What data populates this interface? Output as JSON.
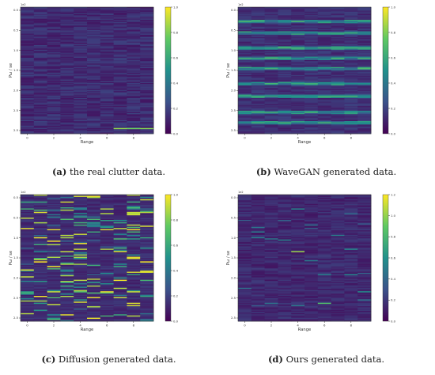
{
  "colors": {
    "colormap": [
      "#440154",
      "#3b528b",
      "#21918c",
      "#5ec962",
      "#fde725"
    ],
    "background": "#ffffff"
  },
  "chart_data": [
    {
      "type": "heatmap",
      "caption_letter": "(a)",
      "caption_text": " the real clutter data.",
      "xlabel": "Range",
      "ylabel": "Pω / se",
      "y_scale_note": "1e2",
      "x_ticks": [
        "0",
        "2",
        "4",
        "6",
        "8"
      ],
      "y_ticks": [
        "0.5",
        "0.5",
        "1.0",
        "1.5",
        "2.0",
        "2.5",
        "2.5"
      ],
      "colorbar_ticks": [
        "1.0",
        "0.8",
        "0.6",
        "0.4",
        "0.2",
        "0.0"
      ],
      "colorbar_range": [
        0,
        1
      ],
      "grid": false,
      "pattern": "real",
      "rows": 110,
      "cols": 10
    },
    {
      "type": "heatmap",
      "caption_letter": "(b)",
      "caption_text": " WaveGAN generated data.",
      "xlabel": "Range",
      "ylabel": "Pω / se",
      "y_scale_note": "1e2",
      "x_ticks": [
        "0",
        "2",
        "4",
        "6",
        "8"
      ],
      "y_ticks": [
        "0.0",
        "0.5",
        "1.0",
        "1.5",
        "2.0",
        "2.5",
        "2.5"
      ],
      "colorbar_ticks": [
        "1.0",
        "0.8",
        "0.6",
        "0.4",
        "0.2",
        "0.0"
      ],
      "colorbar_range": [
        0,
        1
      ],
      "grid": false,
      "pattern": "wavegan",
      "rows": 110,
      "cols": 10
    },
    {
      "type": "heatmap",
      "caption_letter": "(c)",
      "caption_text": " Diffusion generated data.",
      "xlabel": "Range",
      "ylabel": "Pω / se",
      "y_scale_note": "1e2",
      "x_ticks": [
        "0",
        "2",
        "4",
        "6",
        "8"
      ],
      "y_ticks": [
        "0.5",
        "0.5",
        "1.0",
        "1.5",
        "2.0",
        "2.5",
        "2.5"
      ],
      "colorbar_ticks": [
        "1.0",
        "0.8",
        "0.6",
        "0.4",
        "0.2",
        "0.0"
      ],
      "colorbar_range": [
        0,
        1
      ],
      "grid": false,
      "pattern": "diffusion",
      "rows": 110,
      "cols": 10
    },
    {
      "type": "heatmap",
      "caption_letter": "(d)",
      "caption_text": " Ours generated data.",
      "xlabel": "Range",
      "ylabel": "Pω / se",
      "y_scale_note": "1e2",
      "x_ticks": [
        "0",
        "2",
        "4",
        "6",
        "8"
      ],
      "y_ticks": [
        "0.0",
        "0.5",
        "1.0",
        "1.5",
        "2.0",
        "2.5",
        "2.5"
      ],
      "colorbar_ticks": [
        "1.2",
        "1.0",
        "0.8",
        "0.6",
        "0.4",
        "0.2",
        "0.0"
      ],
      "colorbar_range": [
        0,
        1.2
      ],
      "grid": false,
      "pattern": "ours",
      "rows": 110,
      "cols": 10
    }
  ]
}
